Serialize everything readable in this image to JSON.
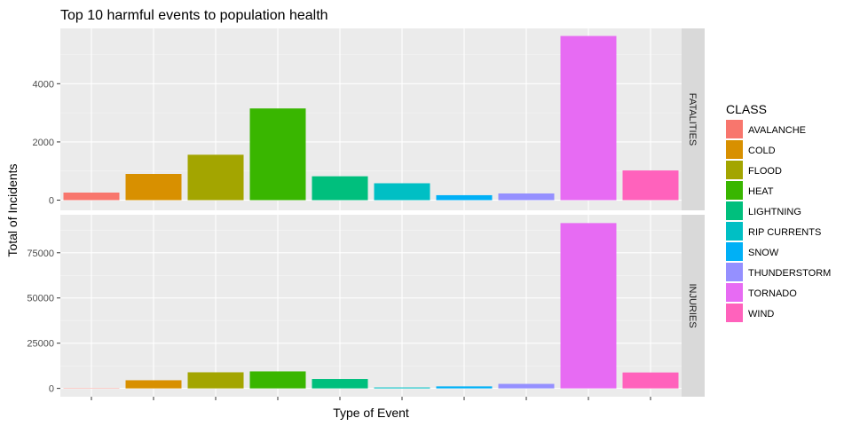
{
  "chart_data": {
    "type": "bar",
    "title": "Top 10 harmful events to population health",
    "xlabel": "Type of Event",
    "ylabel": "Total of Incidents",
    "legend": {
      "title": "CLASS",
      "placement": "right",
      "entries": [
        {
          "label": "AVALANCHE",
          "color": "#F8766D"
        },
        {
          "label": "COLD",
          "color": "#D89000"
        },
        {
          "label": "FLOOD",
          "color": "#A3A500"
        },
        {
          "label": "HEAT",
          "color": "#39B600"
        },
        {
          "label": "LIGHTNING",
          "color": "#00BF7D"
        },
        {
          "label": "RIP CURRENTS",
          "color": "#00BFC4"
        },
        {
          "label": "SNOW",
          "color": "#00B0F6"
        },
        {
          "label": "THUNDERSTORM",
          "color": "#9590FF"
        },
        {
          "label": "TORNADO",
          "color": "#E76BF3"
        },
        {
          "label": "WIND",
          "color": "#FF62BC"
        }
      ]
    },
    "categories": [
      "AVALANCHE",
      "COLD",
      "FLOOD",
      "HEAT",
      "LIGHTNING",
      "RIP CURRENTS",
      "SNOW",
      "THUNDERSTORM",
      "TORNADO",
      "WIND"
    ],
    "grid": true,
    "panels": [
      {
        "strip": "FATALITIES",
        "ylim": [
          -350,
          5900
        ],
        "yticks": [
          0,
          2000,
          4000
        ],
        "ytick_labels": [
          "0",
          "2000",
          "4000"
        ],
        "values": [
          260,
          900,
          1560,
          3150,
          820,
          580,
          170,
          230,
          5640,
          1020
        ]
      },
      {
        "strip": "INJURIES",
        "ylim": [
          -4600,
          96000
        ],
        "yticks": [
          0,
          25000,
          50000,
          75000
        ],
        "ytick_labels": [
          "0",
          "25000",
          "50000",
          "75000"
        ],
        "values": [
          170,
          4500,
          8900,
          9400,
          5200,
          520,
          1100,
          2500,
          91400,
          8800
        ]
      }
    ]
  }
}
